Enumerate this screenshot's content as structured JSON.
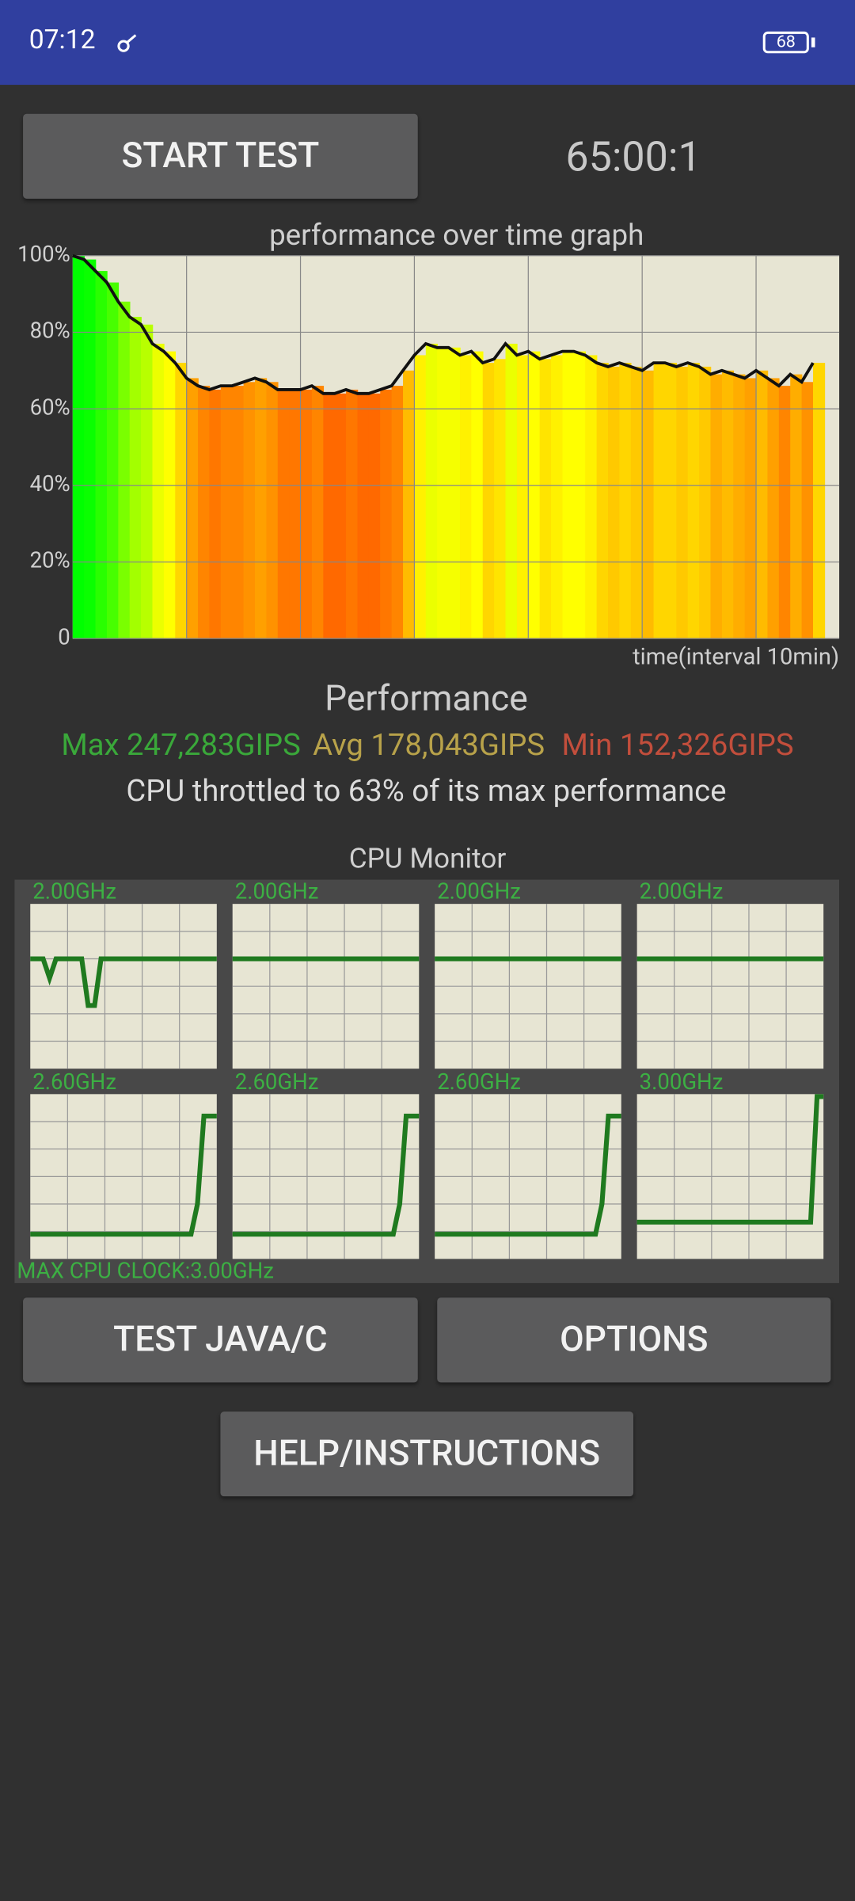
{
  "status_bar": {
    "time": "07:12",
    "battery": "68"
  },
  "start_button": "START TEST",
  "timer": "65:00:1",
  "performance_graph": {
    "title": "performance over time graph",
    "x_label": "time(interval 10min)",
    "x": [
      0,
      1,
      2,
      3,
      4,
      5,
      6,
      7,
      8,
      9,
      10,
      11,
      12,
      13,
      14,
      15,
      16,
      17,
      18,
      19,
      20,
      21,
      22,
      23,
      24,
      25,
      26,
      27,
      28,
      29,
      30,
      31,
      32,
      33,
      34,
      35,
      36,
      37,
      38,
      39,
      40,
      41,
      42,
      43,
      44,
      45,
      46,
      47,
      48,
      49,
      50,
      51,
      52,
      53,
      54,
      55,
      56,
      57,
      58,
      59,
      60,
      61,
      62,
      63,
      64,
      65
    ],
    "values": [
      100,
      99,
      96,
      93,
      88,
      84,
      82,
      77,
      75,
      72,
      68,
      66,
      65,
      66,
      66,
      67,
      68,
      67,
      65,
      65,
      65,
      66,
      64,
      64,
      65,
      64,
      64,
      65,
      66,
      70,
      74,
      77,
      76,
      76,
      74,
      75,
      72,
      73,
      77,
      74,
      75,
      73,
      74,
      75,
      75,
      74,
      72,
      71,
      72,
      71,
      70,
      72,
      72,
      71,
      72,
      71,
      69,
      70,
      69,
      68,
      70,
      68,
      66,
      69,
      67,
      72
    ],
    "xlim": [
      0,
      67.3
    ],
    "xticks": [
      10,
      20,
      30,
      40,
      50,
      60
    ],
    "ylim": [
      0,
      100
    ],
    "yticks": [
      0,
      {
        "value": 20,
        "label": "20%"
      },
      {
        "value": 40,
        "label": "40%"
      },
      {
        "value": 60,
        "label": "60%"
      },
      {
        "value": 80,
        "label": "80%"
      },
      {
        "value": 100,
        "label": "100%"
      }
    ]
  },
  "performance": {
    "title": "Performance",
    "max": "Max 247,283GIPS",
    "avg": "Avg 178,043GIPS",
    "min": "Min 152,326GIPS",
    "throttle": "CPU throttled to 63% of its max performance"
  },
  "cpu_monitor": {
    "title": "CPU Monitor",
    "max_clock": "MAX CPU CLOCK:3.00GHz",
    "ylim": [
      0,
      3
    ],
    "cores": [
      {
        "label": "2.00GHz",
        "values": [
          2,
          2,
          2,
          1.65,
          2,
          2,
          2,
          2,
          2,
          1.15,
          1.15,
          2,
          2,
          2,
          2,
          2,
          2,
          2,
          2,
          2,
          2,
          2,
          2,
          2,
          2,
          2,
          2,
          2,
          2,
          2
        ]
      },
      {
        "label": "2.00GHz",
        "values": [
          2,
          2,
          2,
          2,
          2,
          2,
          2,
          2,
          2,
          2,
          2,
          2,
          2,
          2,
          2,
          2,
          2,
          2,
          2,
          2,
          2,
          2,
          2,
          2,
          2,
          2,
          2,
          2,
          2,
          2
        ]
      },
      {
        "label": "2.00GHz",
        "values": [
          2,
          2,
          2,
          2,
          2,
          2,
          2,
          2,
          2,
          2,
          2,
          2,
          2,
          2,
          2,
          2,
          2,
          2,
          2,
          2,
          2,
          2,
          2,
          2,
          2,
          2,
          2,
          2,
          2,
          2
        ]
      },
      {
        "label": "2.00GHz",
        "values": [
          2,
          2,
          2,
          2,
          2,
          2,
          2,
          2,
          2,
          2,
          2,
          2,
          2,
          2,
          2,
          2,
          2,
          2,
          2,
          2,
          2,
          2,
          2,
          2,
          2,
          2,
          2,
          2,
          2,
          2
        ]
      },
      {
        "label": "2.60GHz",
        "values": [
          0.45,
          0.45,
          0.45,
          0.45,
          0.45,
          0.45,
          0.45,
          0.45,
          0.45,
          0.45,
          0.45,
          0.45,
          0.45,
          0.45,
          0.45,
          0.45,
          0.45,
          0.45,
          0.45,
          0.45,
          0.45,
          0.45,
          0.45,
          0.45,
          0.45,
          0.45,
          1.0,
          2.6,
          2.6,
          2.6
        ]
      },
      {
        "label": "2.60GHz",
        "values": [
          0.45,
          0.45,
          0.45,
          0.45,
          0.45,
          0.45,
          0.45,
          0.45,
          0.45,
          0.45,
          0.45,
          0.45,
          0.45,
          0.45,
          0.45,
          0.45,
          0.45,
          0.45,
          0.45,
          0.45,
          0.45,
          0.45,
          0.45,
          0.45,
          0.45,
          0.45,
          1.0,
          2.6,
          2.6,
          2.6
        ]
      },
      {
        "label": "2.60GHz",
        "values": [
          0.45,
          0.45,
          0.45,
          0.45,
          0.45,
          0.45,
          0.45,
          0.45,
          0.45,
          0.45,
          0.45,
          0.45,
          0.45,
          0.45,
          0.45,
          0.45,
          0.45,
          0.45,
          0.45,
          0.45,
          0.45,
          0.45,
          0.45,
          0.45,
          0.45,
          0.45,
          1.0,
          2.6,
          2.6,
          2.6
        ]
      },
      {
        "label": "3.00GHz",
        "values": [
          0.67,
          0.67,
          0.67,
          0.67,
          0.67,
          0.67,
          0.67,
          0.67,
          0.67,
          0.67,
          0.67,
          0.67,
          0.67,
          0.67,
          0.67,
          0.67,
          0.67,
          0.67,
          0.67,
          0.67,
          0.67,
          0.67,
          0.67,
          0.67,
          0.67,
          0.67,
          0.67,
          0.67,
          3,
          3
        ]
      }
    ]
  },
  "buttons": {
    "test": "TEST JAVA/C",
    "options": "OPTIONS",
    "help": "HELP/INSTRUCTIONS"
  }
}
